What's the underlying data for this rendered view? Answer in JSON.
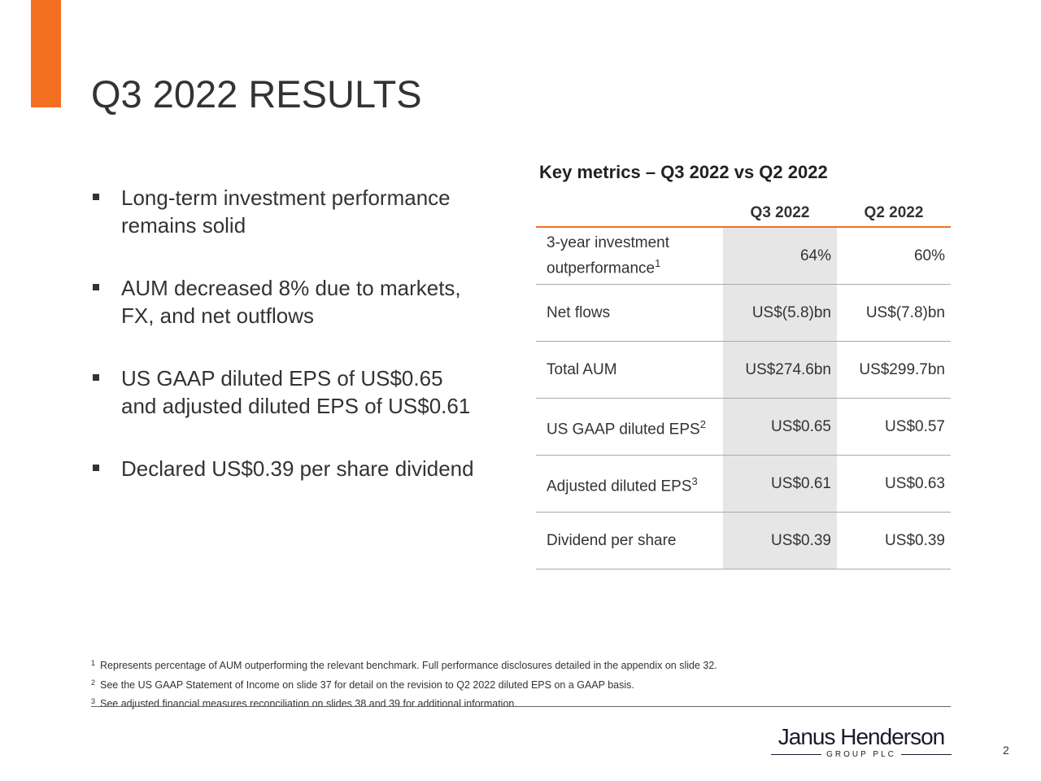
{
  "header": {
    "title": "Q3 2022 RESULTS"
  },
  "bullets": [
    "Long-term investment performance remains solid",
    "AUM decreased 8% due to markets, FX, and net outflows",
    "US GAAP diluted EPS of US$0.65 and adjusted diluted EPS of US$0.61",
    "Declared US$0.39 per share dividend"
  ],
  "table": {
    "title": "Key metrics – Q3 2022 vs Q2 2022",
    "columns": [
      "Q3 2022",
      "Q2 2022"
    ],
    "rows": [
      {
        "label": "3-year investment outperformance",
        "note": "1",
        "values": [
          "64%",
          "60%"
        ]
      },
      {
        "label": "Net flows",
        "values": [
          "US$(5.8)bn",
          "US$(7.8)bn"
        ]
      },
      {
        "label": "Total AUM",
        "values": [
          "US$274.6bn",
          "US$299.7bn"
        ]
      },
      {
        "label": "US GAAP diluted EPS",
        "note": "2",
        "values": [
          "US$0.65",
          "US$0.57"
        ]
      },
      {
        "label": "Adjusted diluted EPS",
        "note": "3",
        "values": [
          "US$0.61",
          "US$0.63"
        ]
      },
      {
        "label": "Dividend per share",
        "values": [
          "US$0.39",
          "US$0.39"
        ]
      }
    ]
  },
  "footnotes": [
    {
      "number": "1",
      "text": "Represents percentage of AUM outperforming the relevant benchmark. Full performance disclosures detailed in the appendix on slide 32."
    },
    {
      "number": "2",
      "text": "See the US GAAP Statement of Income on slide 37 for detail on the revision to Q2 2022 diluted EPS on a GAAP basis."
    },
    {
      "number": "3",
      "text": "See adjusted financial measures reconciliation on slides 38 and 39 for additional information."
    }
  ],
  "logo": {
    "name": "Janus Henderson",
    "sub": "GROUP PLC"
  },
  "page_number": "2"
}
